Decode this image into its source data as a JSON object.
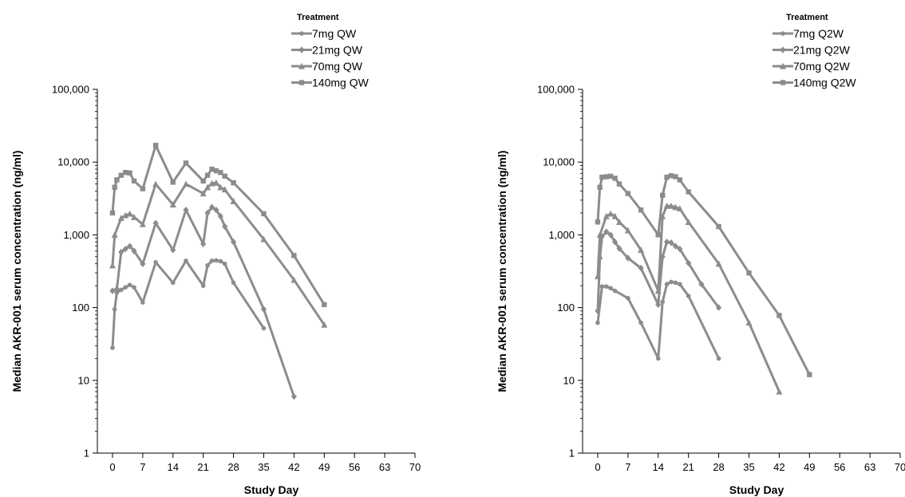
{
  "chart_data": [
    {
      "type": "line",
      "xlabel": "Study Day",
      "ylabel": "Median AKR-001 serum concentration (ng/ml)",
      "yscale": "log",
      "ylim": [
        1,
        100000
      ],
      "xlim": [
        -3.5,
        70
      ],
      "x_ticks": [
        0,
        7,
        14,
        21,
        28,
        35,
        42,
        49,
        56,
        63,
        70
      ],
      "y_ticks": [
        1,
        10,
        100,
        1000,
        10000,
        100000
      ],
      "x_tick_labels": [
        "0",
        "7",
        "14",
        "21",
        "28",
        "35",
        "42",
        "49",
        "56",
        "63",
        "70"
      ],
      "y_tick_labels": [
        "1",
        "10",
        "100",
        "1,000",
        "10,000",
        "100,000"
      ],
      "legend_title": "Treatment",
      "legend_position": "top-right",
      "line_color": "#8c8c8c",
      "series": [
        {
          "name": "7mg QW",
          "marker": "circle",
          "points": [
            [
              0,
              28
            ],
            [
              0.5,
              95
            ],
            [
              1,
              160
            ],
            [
              2,
              175
            ],
            [
              3,
              190
            ],
            [
              4,
              205
            ],
            [
              5,
              190
            ],
            [
              7,
              118
            ],
            [
              10,
              420
            ],
            [
              14,
              220
            ],
            [
              17,
              440
            ],
            [
              21,
              200
            ],
            [
              22,
              380
            ],
            [
              23,
              440
            ],
            [
              24,
              445
            ],
            [
              25,
              435
            ],
            [
              26,
              400
            ],
            [
              28,
              220
            ],
            [
              35,
              52
            ]
          ]
        },
        {
          "name": "21mg QW",
          "marker": "diamond",
          "points": [
            [
              0,
              170
            ],
            [
              1,
              180
            ],
            [
              2,
              580
            ],
            [
              3,
              640
            ],
            [
              4,
              700
            ],
            [
              5,
              600
            ],
            [
              7,
              400
            ],
            [
              10,
              1450
            ],
            [
              14,
              620
            ],
            [
              17,
              2200
            ],
            [
              21,
              750
            ],
            [
              22,
              2000
            ],
            [
              23,
              2400
            ],
            [
              24,
              2200
            ],
            [
              25,
              1800
            ],
            [
              26,
              1300
            ],
            [
              28,
              800
            ],
            [
              35,
              95
            ],
            [
              42,
              6
            ]
          ]
        },
        {
          "name": "70mg QW",
          "marker": "triangle",
          "points": [
            [
              0,
              380
            ],
            [
              0.5,
              1000
            ],
            [
              2,
              1700
            ],
            [
              3,
              1850
            ],
            [
              4,
              1950
            ],
            [
              5,
              1750
            ],
            [
              7,
              1400
            ],
            [
              10,
              5000
            ],
            [
              14,
              2600
            ],
            [
              17,
              5000
            ],
            [
              21,
              3700
            ],
            [
              22,
              4500
            ],
            [
              23,
              5100
            ],
            [
              24,
              5200
            ],
            [
              25,
              4500
            ],
            [
              26,
              4200
            ],
            [
              28,
              2900
            ],
            [
              35,
              870
            ],
            [
              42,
              240
            ],
            [
              49,
              58
            ]
          ]
        },
        {
          "name": "140mg QW",
          "marker": "square",
          "points": [
            [
              0,
              2000
            ],
            [
              0.5,
              4500
            ],
            [
              1,
              5700
            ],
            [
              2,
              6600
            ],
            [
              3,
              7200
            ],
            [
              4,
              7100
            ],
            [
              5,
              5500
            ],
            [
              7,
              4300
            ],
            [
              10,
              17000
            ],
            [
              14,
              5300
            ],
            [
              17,
              9700
            ],
            [
              21,
              5500
            ],
            [
              22,
              6600
            ],
            [
              23,
              8000
            ],
            [
              24,
              7600
            ],
            [
              25,
              7200
            ],
            [
              26,
              6400
            ],
            [
              28,
              5200
            ],
            [
              35,
              1950
            ],
            [
              42,
              520
            ],
            [
              49,
              110
            ]
          ]
        }
      ]
    },
    {
      "type": "line",
      "xlabel": "Study Day",
      "ylabel": "Median AKR-001 serum concentration (ng/ml)",
      "yscale": "log",
      "ylim": [
        1,
        100000
      ],
      "xlim": [
        -3.5,
        70
      ],
      "x_ticks": [
        0,
        7,
        14,
        21,
        28,
        35,
        42,
        49,
        56,
        63,
        70
      ],
      "y_ticks": [
        1,
        10,
        100,
        1000,
        10000,
        100000
      ],
      "x_tick_labels": [
        "0",
        "7",
        "14",
        "21",
        "28",
        "35",
        "42",
        "49",
        "56",
        "63",
        "70"
      ],
      "y_tick_labels": [
        "1",
        "10",
        "100",
        "1,000",
        "10,000",
        "100,000"
      ],
      "legend_title": "Treatment",
      "legend_position": "top-right",
      "line_color": "#8c8c8c",
      "series": [
        {
          "name": "7mg Q2W",
          "marker": "circle",
          "points": [
            [
              0,
              62
            ],
            [
              1,
              195
            ],
            [
              2,
              195
            ],
            [
              3,
              185
            ],
            [
              4,
              170
            ],
            [
              7,
              135
            ],
            [
              10,
              62
            ],
            [
              14,
              20
            ],
            [
              15,
              120
            ],
            [
              16,
              210
            ],
            [
              17,
              225
            ],
            [
              18,
              220
            ],
            [
              19,
              210
            ],
            [
              21,
              145
            ],
            [
              28,
              20
            ]
          ]
        },
        {
          "name": "21mg Q2W",
          "marker": "diamond",
          "points": [
            [
              0,
              90
            ],
            [
              0.5,
              480
            ],
            [
              1,
              950
            ],
            [
              2,
              1100
            ],
            [
              3,
              1000
            ],
            [
              4,
              800
            ],
            [
              5,
              650
            ],
            [
              7,
              480
            ],
            [
              10,
              350
            ],
            [
              14,
              110
            ],
            [
              15,
              500
            ],
            [
              16,
              800
            ],
            [
              17,
              780
            ],
            [
              18,
              700
            ],
            [
              19,
              640
            ],
            [
              21,
              410
            ],
            [
              24,
              210
            ],
            [
              28,
              100
            ]
          ]
        },
        {
          "name": "70mg Q2W",
          "marker": "triangle",
          "points": [
            [
              0,
              270
            ],
            [
              0.5,
              1000
            ],
            [
              2,
              1800
            ],
            [
              3,
              1950
            ],
            [
              4,
              1800
            ],
            [
              5,
              1500
            ],
            [
              7,
              1150
            ],
            [
              10,
              620
            ],
            [
              14,
              170
            ],
            [
              15,
              1800
            ],
            [
              16,
              2500
            ],
            [
              17,
              2500
            ],
            [
              18,
              2400
            ],
            [
              19,
              2300
            ],
            [
              21,
              1500
            ],
            [
              28,
              400
            ],
            [
              35,
              62
            ],
            [
              42,
              7
            ]
          ]
        },
        {
          "name": "140mg Q2W",
          "marker": "square",
          "points": [
            [
              0,
              1500
            ],
            [
              0.5,
              4500
            ],
            [
              1,
              6200
            ],
            [
              2,
              6300
            ],
            [
              3,
              6400
            ],
            [
              4,
              6000
            ],
            [
              5,
              5000
            ],
            [
              7,
              3700
            ],
            [
              10,
              2200
            ],
            [
              14,
              1000
            ],
            [
              15,
              3500
            ],
            [
              16,
              6200
            ],
            [
              17,
              6500
            ],
            [
              18,
              6300
            ],
            [
              19,
              5700
            ],
            [
              21,
              3900
            ],
            [
              28,
              1300
            ],
            [
              35,
              300
            ],
            [
              42,
              78
            ],
            [
              49,
              12
            ]
          ]
        }
      ]
    }
  ]
}
